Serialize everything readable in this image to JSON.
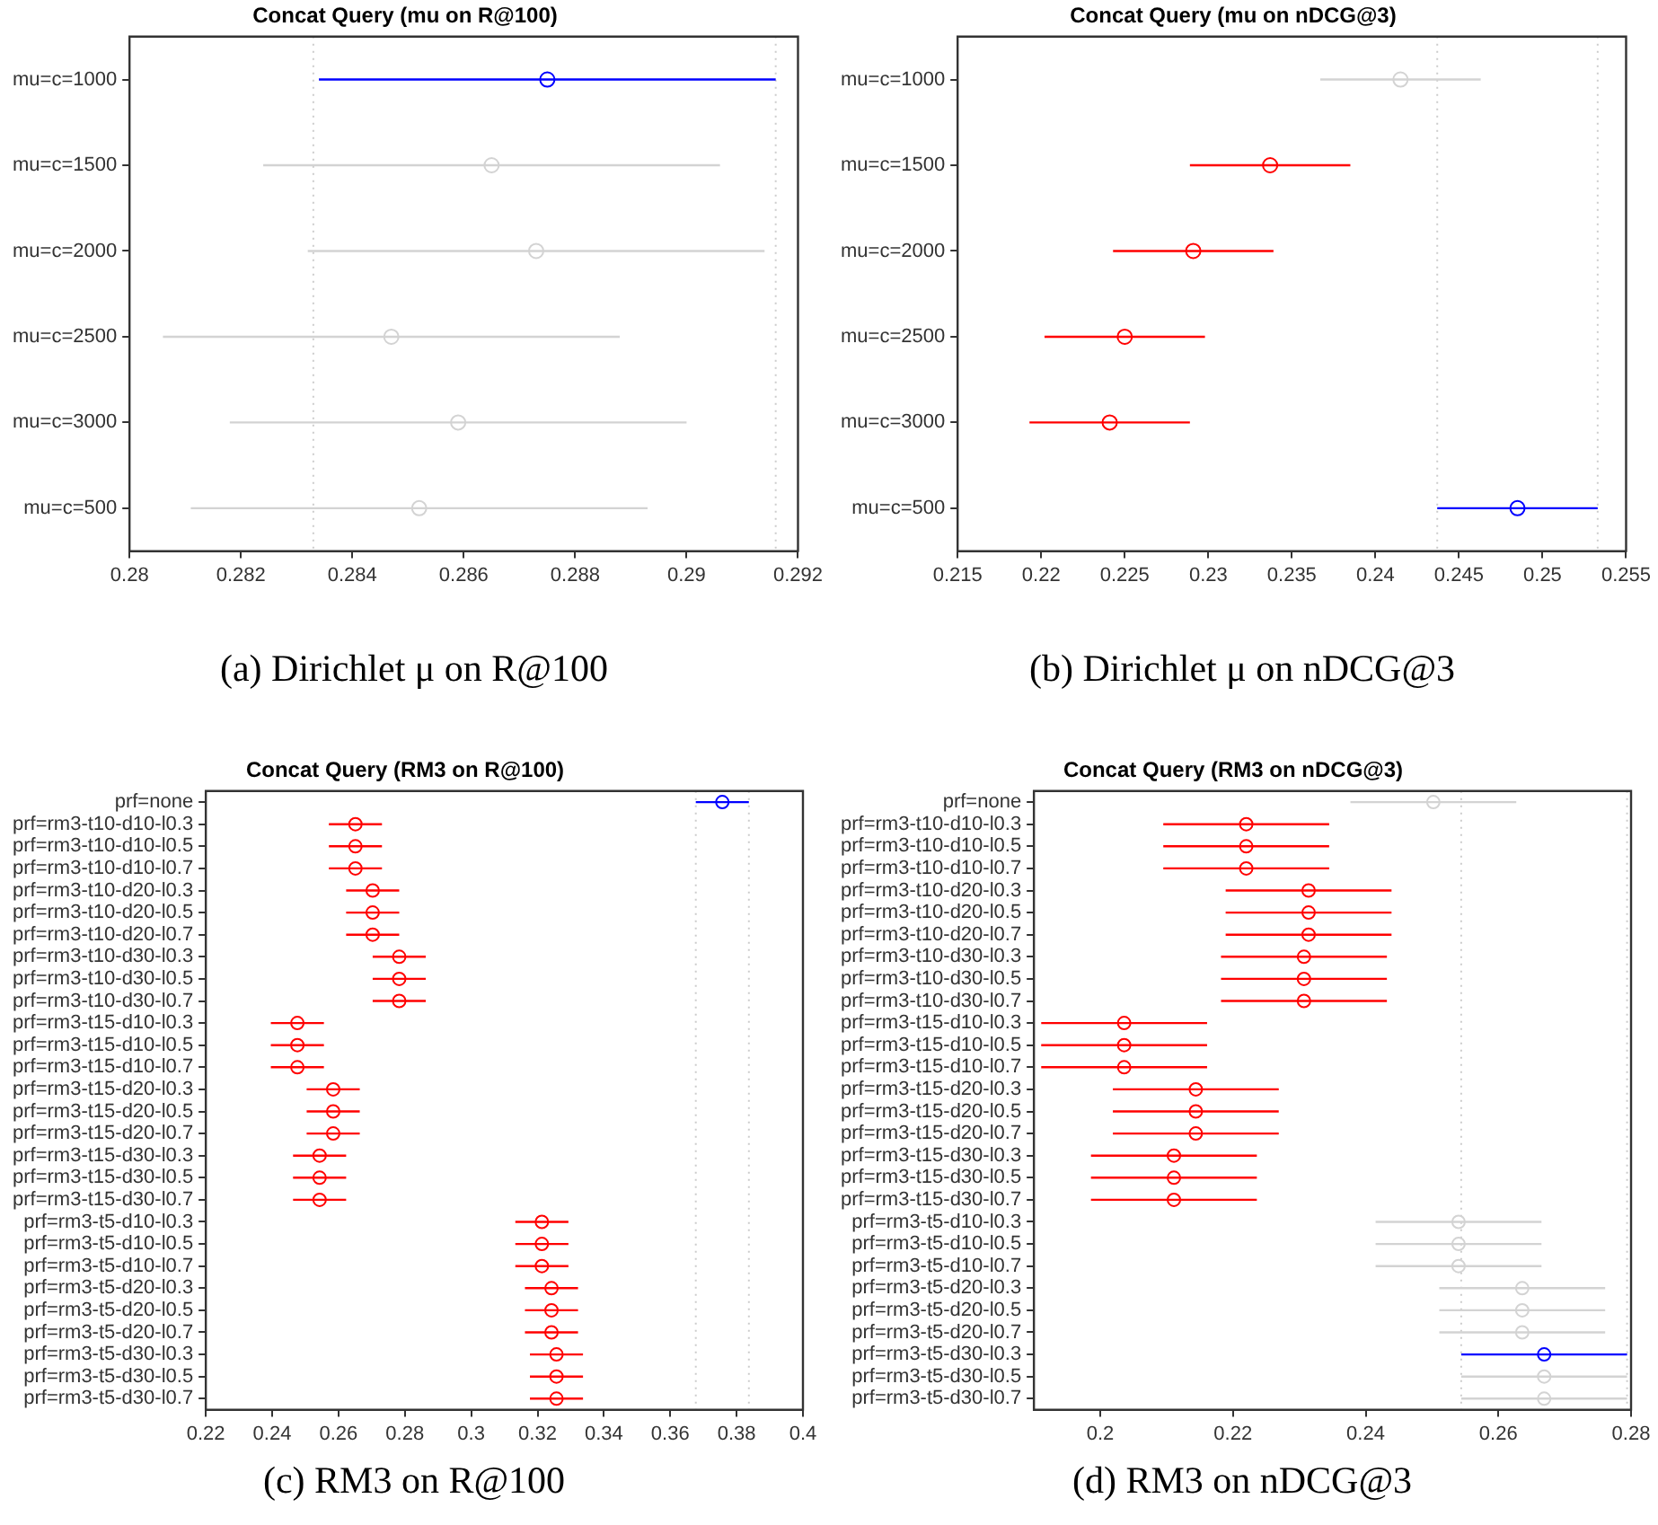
{
  "chart_data": [
    {
      "type": "scatter",
      "orientation": "horizontal",
      "title": "Concat Query (mu on R@100)",
      "marker": "circle",
      "categories": [
        "mu=c=1000",
        "mu=c=1500",
        "mu=c=2000",
        "mu=c=2500",
        "mu=c=3000",
        "mu=c=500"
      ],
      "values": [
        0.2875,
        0.2865,
        0.2873,
        0.2847,
        0.2859,
        0.2852
      ],
      "errors": [
        0.0041,
        0.0041,
        0.0041,
        0.0041,
        0.0041,
        0.0041
      ],
      "colors": [
        "#0000ff",
        "#d3d3d3",
        "#d3d3d3",
        "#d3d3d3",
        "#d3d3d3",
        "#d3d3d3"
      ],
      "xlim": [
        0.28,
        0.292
      ],
      "xticks": [
        0.28,
        0.282,
        0.284,
        0.286,
        0.288,
        0.29,
        0.292
      ],
      "ref_lines": [
        {
          "axis": "x",
          "value": 0.2833,
          "color": "#cccccc",
          "line_style": "dotted"
        },
        {
          "axis": "x",
          "value": 0.2916,
          "color": "#cccccc",
          "line_style": "dotted"
        }
      ],
      "annotations": [
        "(a) Dirichlet μ on R@100"
      ]
    },
    {
      "type": "scatter",
      "orientation": "horizontal",
      "title": "Concat Query (mu on nDCG@3)",
      "marker": "circle",
      "categories": [
        "mu=c=1000",
        "mu=c=1500",
        "mu=c=2000",
        "mu=c=2500",
        "mu=c=3000",
        "mu=c=500"
      ],
      "values": [
        0.2415,
        0.2337,
        0.2291,
        0.225,
        0.2241,
        0.2485
      ],
      "errors": [
        0.0048,
        0.0048,
        0.0048,
        0.0048,
        0.0048,
        0.0048
      ],
      "colors": [
        "#d3d3d3",
        "#ff0000",
        "#ff0000",
        "#ff0000",
        "#ff0000",
        "#0000ff"
      ],
      "xlim": [
        0.215,
        0.255
      ],
      "xticks": [
        0.215,
        0.22,
        0.225,
        0.23,
        0.235,
        0.24,
        0.245,
        0.25,
        0.255
      ],
      "ref_lines": [
        {
          "axis": "x",
          "value": 0.2437,
          "color": "#cccccc",
          "line_style": "dotted"
        },
        {
          "axis": "x",
          "value": 0.2533,
          "color": "#cccccc",
          "line_style": "dotted"
        }
      ],
      "annotations": [
        "(b) Dirichlet μ on nDCG@3"
      ]
    },
    {
      "type": "scatter",
      "orientation": "horizontal",
      "title": "Concat Query (RM3 on R@100)",
      "marker": "circle",
      "categories": [
        "prf=none",
        "prf=rm3-t10-d10-l0.3",
        "prf=rm3-t10-d10-l0.5",
        "prf=rm3-t10-d10-l0.7",
        "prf=rm3-t10-d20-l0.3",
        "prf=rm3-t10-d20-l0.5",
        "prf=rm3-t10-d20-l0.7",
        "prf=rm3-t10-d30-l0.3",
        "prf=rm3-t10-d30-l0.5",
        "prf=rm3-t10-d30-l0.7",
        "prf=rm3-t15-d10-l0.3",
        "prf=rm3-t15-d10-l0.5",
        "prf=rm3-t15-d10-l0.7",
        "prf=rm3-t15-d20-l0.3",
        "prf=rm3-t15-d20-l0.5",
        "prf=rm3-t15-d20-l0.7",
        "prf=rm3-t15-d30-l0.3",
        "prf=rm3-t15-d30-l0.5",
        "prf=rm3-t15-d30-l0.7",
        "prf=rm3-t5-d10-l0.3",
        "prf=rm3-t5-d10-l0.5",
        "prf=rm3-t5-d10-l0.7",
        "prf=rm3-t5-d20-l0.3",
        "prf=rm3-t5-d20-l0.5",
        "prf=rm3-t5-d20-l0.7",
        "prf=rm3-t5-d30-l0.3",
        "prf=rm3-t5-d30-l0.5",
        "prf=rm3-t5-d30-l0.7"
      ],
      "values": [
        0.3757,
        0.2651,
        0.2651,
        0.2651,
        0.2703,
        0.2703,
        0.2703,
        0.2783,
        0.2783,
        0.2783,
        0.2476,
        0.2476,
        0.2476,
        0.2584,
        0.2584,
        0.2584,
        0.2543,
        0.2543,
        0.2543,
        0.3213,
        0.3213,
        0.3213,
        0.3242,
        0.3242,
        0.3242,
        0.3257,
        0.3257,
        0.3257
      ],
      "errors": [
        0.008,
        0.008,
        0.008,
        0.008,
        0.008,
        0.008,
        0.008,
        0.008,
        0.008,
        0.008,
        0.008,
        0.008,
        0.008,
        0.008,
        0.008,
        0.008,
        0.008,
        0.008,
        0.008,
        0.008,
        0.008,
        0.008,
        0.008,
        0.008,
        0.008,
        0.008,
        0.008,
        0.008
      ],
      "colors": [
        "#0000ff",
        "#ff0000",
        "#ff0000",
        "#ff0000",
        "#ff0000",
        "#ff0000",
        "#ff0000",
        "#ff0000",
        "#ff0000",
        "#ff0000",
        "#ff0000",
        "#ff0000",
        "#ff0000",
        "#ff0000",
        "#ff0000",
        "#ff0000",
        "#ff0000",
        "#ff0000",
        "#ff0000",
        "#ff0000",
        "#ff0000",
        "#ff0000",
        "#ff0000",
        "#ff0000",
        "#ff0000",
        "#ff0000",
        "#ff0000",
        "#ff0000"
      ],
      "xlim": [
        0.22,
        0.4
      ],
      "xticks": [
        0.22,
        0.24,
        0.26,
        0.28,
        0.3,
        0.32,
        0.34,
        0.36,
        0.38,
        0.4
      ],
      "ref_lines": [
        {
          "axis": "x",
          "value": 0.3677,
          "color": "#cccccc",
          "line_style": "dotted"
        },
        {
          "axis": "x",
          "value": 0.3837,
          "color": "#cccccc",
          "line_style": "dotted"
        }
      ],
      "annotations": [
        "(c) RM3 on R@100"
      ]
    },
    {
      "type": "scatter",
      "orientation": "horizontal",
      "title": "Concat Query (RM3 on nDCG@3)",
      "marker": "circle",
      "categories": [
        "prf=none",
        "prf=rm3-t10-d10-l0.3",
        "prf=rm3-t10-d10-l0.5",
        "prf=rm3-t10-d10-l0.7",
        "prf=rm3-t10-d20-l0.3",
        "prf=rm3-t10-d20-l0.5",
        "prf=rm3-t10-d20-l0.7",
        "prf=rm3-t10-d30-l0.3",
        "prf=rm3-t10-d30-l0.5",
        "prf=rm3-t10-d30-l0.7",
        "prf=rm3-t15-d10-l0.3",
        "prf=rm3-t15-d10-l0.5",
        "prf=rm3-t15-d10-l0.7",
        "prf=rm3-t15-d20-l0.3",
        "prf=rm3-t15-d20-l0.5",
        "prf=rm3-t15-d20-l0.7",
        "prf=rm3-t15-d30-l0.3",
        "prf=rm3-t15-d30-l0.5",
        "prf=rm3-t15-d30-l0.7",
        "prf=rm3-t5-d10-l0.3",
        "prf=rm3-t5-d10-l0.5",
        "prf=rm3-t5-d10-l0.7",
        "prf=rm3-t5-d20-l0.3",
        "prf=rm3-t5-d20-l0.5",
        "prf=rm3-t5-d20-l0.7",
        "prf=rm3-t5-d30-l0.3",
        "prf=rm3-t5-d30-l0.5",
        "prf=rm3-t5-d30-l0.7"
      ],
      "values": [
        0.2502,
        0.222,
        0.222,
        0.222,
        0.2314,
        0.2314,
        0.2314,
        0.2307,
        0.2307,
        0.2307,
        0.2036,
        0.2036,
        0.2036,
        0.2144,
        0.2144,
        0.2144,
        0.2111,
        0.2111,
        0.2111,
        0.254,
        0.254,
        0.254,
        0.2636,
        0.2636,
        0.2636,
        0.2669,
        0.2669,
        0.2669
      ],
      "errors": [
        0.0125,
        0.0125,
        0.0125,
        0.0125,
        0.0125,
        0.0125,
        0.0125,
        0.0125,
        0.0125,
        0.0125,
        0.0125,
        0.0125,
        0.0125,
        0.0125,
        0.0125,
        0.0125,
        0.0125,
        0.0125,
        0.0125,
        0.0125,
        0.0125,
        0.0125,
        0.0125,
        0.0125,
        0.0125,
        0.0125,
        0.0125,
        0.0125
      ],
      "colors": [
        "#d3d3d3",
        "#ff0000",
        "#ff0000",
        "#ff0000",
        "#ff0000",
        "#ff0000",
        "#ff0000",
        "#ff0000",
        "#ff0000",
        "#ff0000",
        "#ff0000",
        "#ff0000",
        "#ff0000",
        "#ff0000",
        "#ff0000",
        "#ff0000",
        "#ff0000",
        "#ff0000",
        "#ff0000",
        "#d3d3d3",
        "#d3d3d3",
        "#d3d3d3",
        "#d3d3d3",
        "#d3d3d3",
        "#d3d3d3",
        "#0000ff",
        "#d3d3d3",
        "#d3d3d3"
      ],
      "xlim": [
        0.19,
        0.28
      ],
      "xticks": [
        0.2,
        0.22,
        0.24,
        0.26,
        0.28
      ],
      "ref_lines": [
        {
          "axis": "x",
          "value": 0.2544,
          "color": "#cccccc",
          "line_style": "dotted"
        },
        {
          "axis": "x",
          "value": 0.2794,
          "color": "#cccccc",
          "line_style": "dotted"
        }
      ],
      "annotations": [
        "(d) RM3 on nDCG@3"
      ]
    }
  ]
}
